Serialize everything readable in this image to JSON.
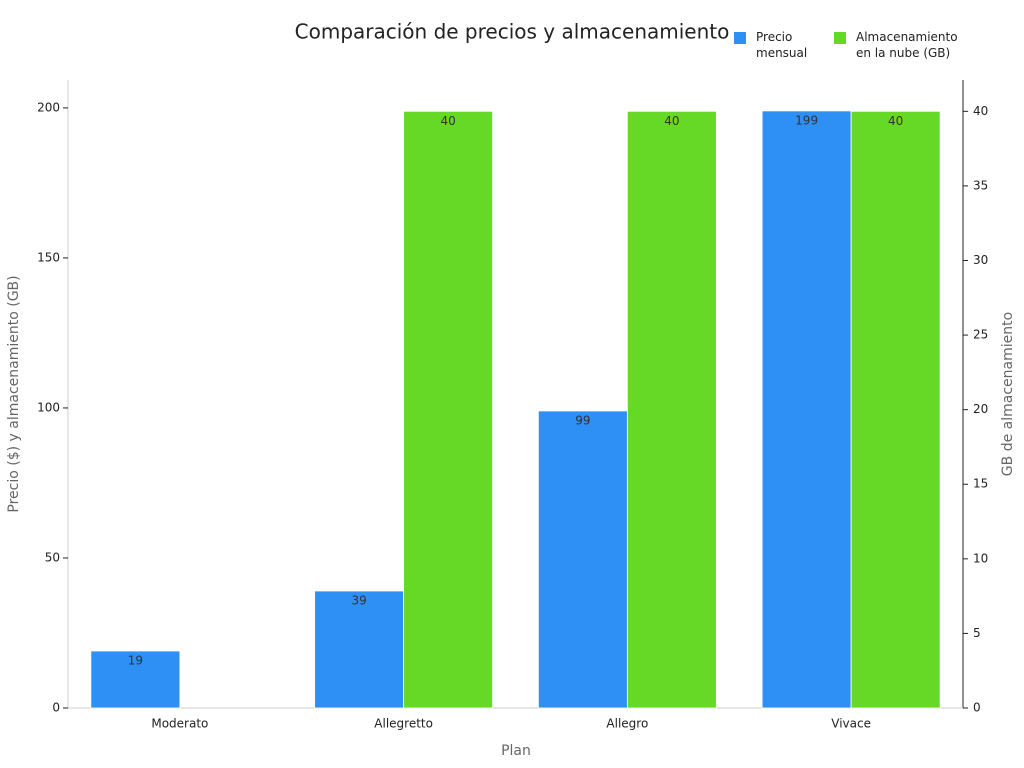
{
  "chart_data": {
    "type": "bar",
    "title": "Comparación de precios y almacenamiento",
    "x_label": "Plan",
    "y_label": "Precio ($) y almacenamiento (GB)",
    "y2_label": "GB de almacenamiento",
    "categories": [
      "Moderato",
      "Allegretto",
      "Allegro",
      "Vivace"
    ],
    "series": [
      {
        "name": "Precio mensual",
        "color": "#2e8ff5",
        "values": [
          19,
          39,
          99,
          199
        ]
      },
      {
        "name": "Almacenamiento en la nube (GB)",
        "color": "#66d927",
        "values": [
          null,
          40,
          40,
          40
        ],
        "axis": "y2"
      }
    ],
    "ylim": [
      0,
      209.3
    ],
    "yticks": [
      0,
      50,
      100,
      150,
      200
    ],
    "y2lim": [
      0,
      42.1
    ],
    "y2ticks": [
      0,
      5,
      10,
      15,
      20,
      25,
      30,
      35,
      40
    ],
    "grid": false,
    "legend": "top-right"
  }
}
